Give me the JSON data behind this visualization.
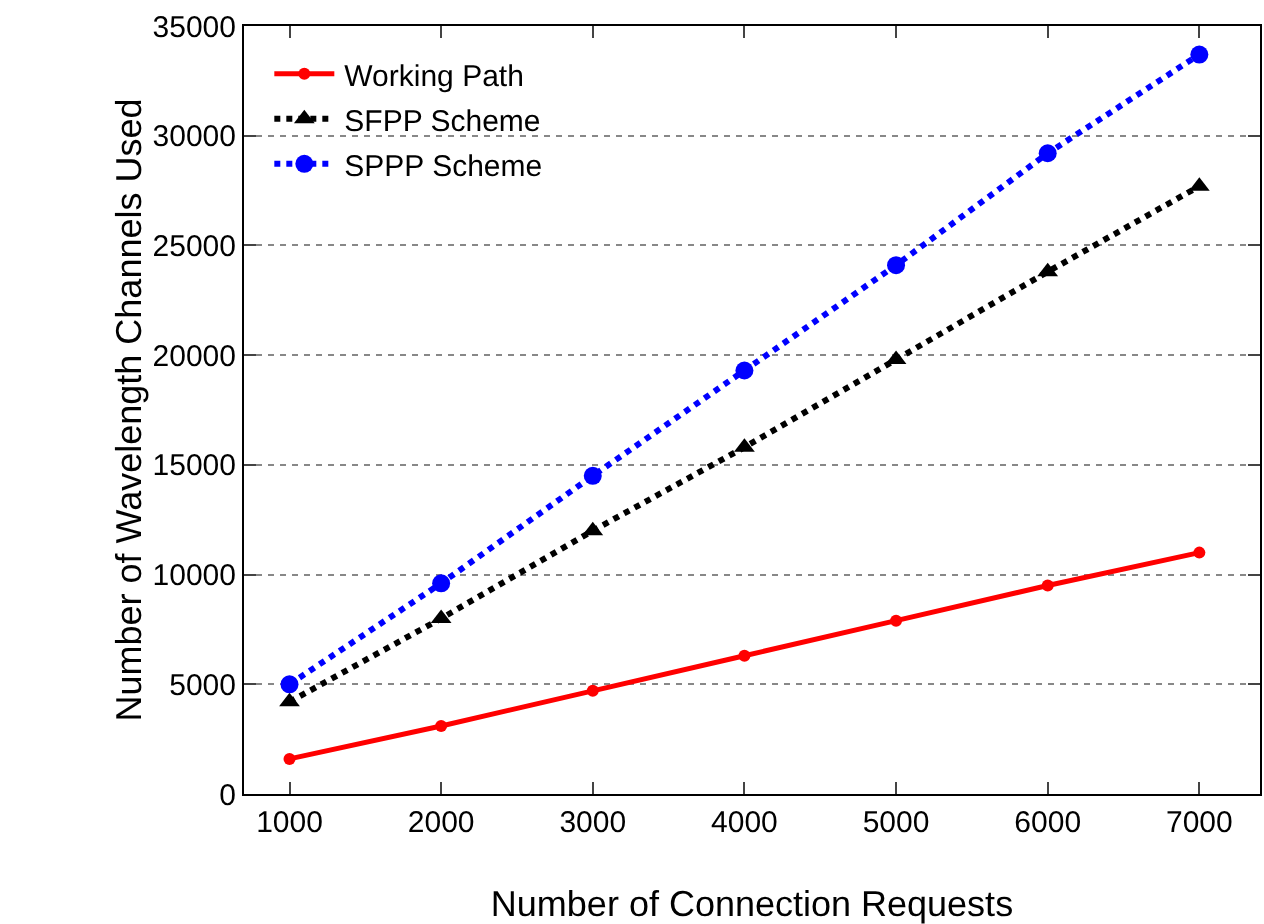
{
  "chart_data": {
    "type": "line",
    "xlabel": "Number of Connection Requests",
    "ylabel": "Number of Wavelength Channels Used",
    "x": [
      1000,
      2000,
      3000,
      4000,
      5000,
      6000,
      7000
    ],
    "series": [
      {
        "name": "Working Path",
        "color": "#ff0000",
        "marker": "circle",
        "line_style": "solid",
        "values": [
          1600,
          3100,
          4700,
          6300,
          7900,
          9500,
          11000
        ]
      },
      {
        "name": "SFPP Scheme",
        "color": "#000000",
        "marker": "triangle",
        "line_style": "dotted",
        "values": [
          4200,
          8000,
          12000,
          15800,
          19800,
          23800,
          27700
        ]
      },
      {
        "name": "SPPP Scheme",
        "color": "#0000ff",
        "marker": "circle",
        "line_style": "dotted",
        "values": [
          5000,
          9600,
          14500,
          19300,
          24100,
          29200,
          33700
        ]
      }
    ],
    "xlim": [
      700,
      7400
    ],
    "xticks": [
      1000,
      2000,
      3000,
      4000,
      5000,
      6000,
      7000
    ],
    "ylim": [
      0,
      35000
    ],
    "yticks": [
      0,
      5000,
      10000,
      15000,
      20000,
      25000,
      30000,
      35000
    ],
    "grid": "y",
    "legend": "top left"
  }
}
